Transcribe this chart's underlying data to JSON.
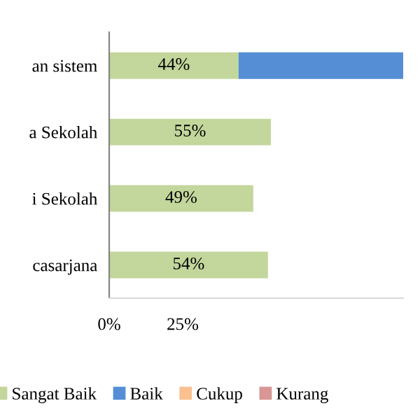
{
  "chart_data": {
    "type": "bar",
    "orientation": "horizontal",
    "stacked": true,
    "categories": [
      "an sistem",
      "a Sekolah",
      "i Sekolah",
      "casarjana"
    ],
    "series": [
      {
        "name": "Sangat Baik",
        "color": "#c3d69b",
        "values": [
          44,
          55,
          49,
          54
        ],
        "value_labels": [
          "44%",
          "55%",
          "49%",
          "54%"
        ]
      },
      {
        "name": "Baik",
        "color": "#558ed5",
        "values": [
          56,
          null,
          null,
          null
        ]
      },
      {
        "name": "Cukup",
        "color": "#fac090",
        "values": [
          null,
          null,
          null,
          null
        ]
      },
      {
        "name": "Kurang",
        "color": "#d99694",
        "values": [
          null,
          null,
          null,
          null
        ]
      }
    ],
    "xlim": [
      0,
      100
    ],
    "xticks": [
      {
        "value": 0,
        "label": "0%"
      },
      {
        "value": 25,
        "label": "25%"
      }
    ],
    "grid": false,
    "legend": "bottom"
  }
}
